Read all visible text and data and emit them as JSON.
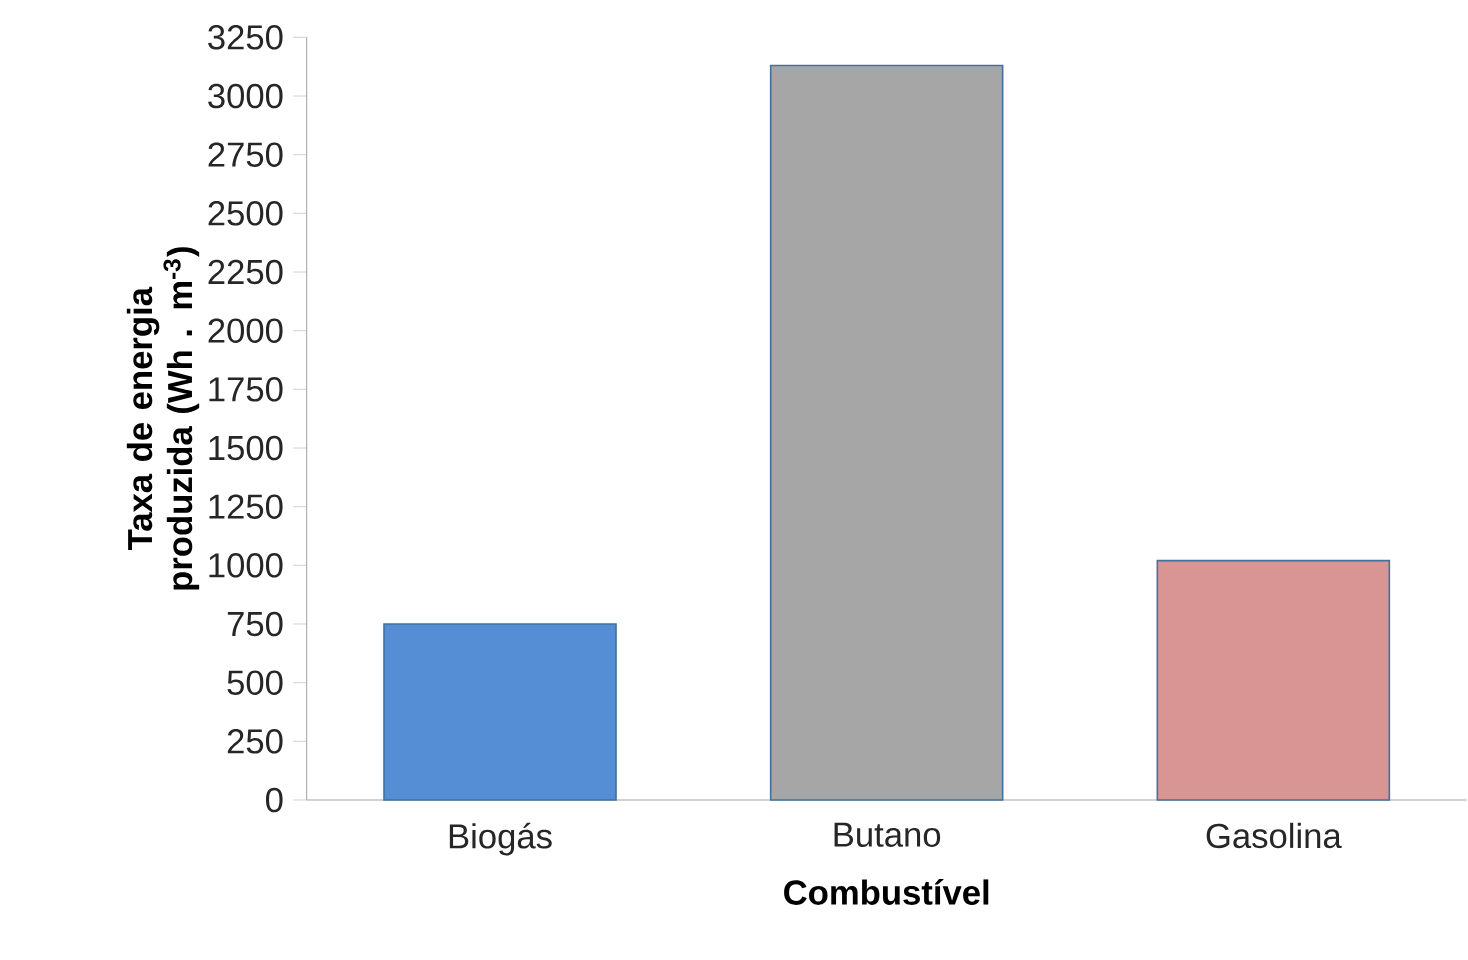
{
  "chart_data": {
    "type": "bar",
    "xlabel": "Combustível",
    "ylabel": "Taxa de energia produzida (Wh . m$^{-3}$)",
    "categories": [
      "Biogás",
      "Butano",
      "Gasolina"
    ],
    "values": [
      750,
      3130,
      1020
    ],
    "colors": [
      "#558ed5",
      "#a6a6a6",
      "#d99594"
    ],
    "ylim": [
      0,
      3250
    ],
    "yticks": [
      0,
      250,
      500,
      750,
      1000,
      1250,
      1500,
      1750,
      2000,
      2250,
      2500,
      2750,
      3000,
      3250
    ],
    "grid": false
  }
}
